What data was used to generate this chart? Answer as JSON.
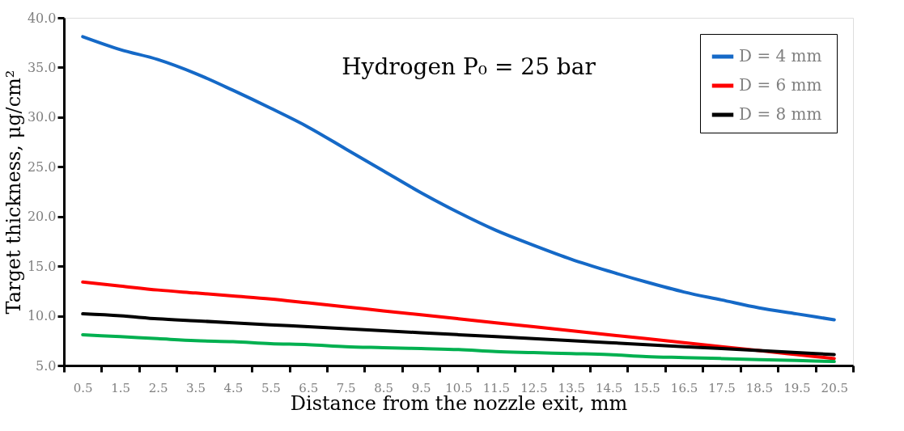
{
  "chart_data": {
    "type": "line",
    "title": "Hydrogen P₀ = 25 bar",
    "xlabel": "Distance from the nozzle exit,  mm",
    "ylabel": "Target thickness, μg/cm²",
    "categories": [
      "0.5",
      "1.5",
      "2.5",
      "3.5",
      "4.5",
      "5.5",
      "6.5",
      "7.5",
      "8.5",
      "9.5",
      "10.5",
      "11.5",
      "12.5",
      "13.5",
      "14.5",
      "15.5",
      "16.5",
      "17.5",
      "18.5",
      "19.5",
      "20.5"
    ],
    "series": [
      {
        "name": "D = 4 mm",
        "color": "#1569c7",
        "values": [
          38.1,
          36.8,
          35.8,
          34.4,
          32.7,
          30.9,
          29.0,
          26.8,
          24.6,
          22.4,
          20.4,
          18.6,
          17.1,
          15.7,
          14.5,
          13.4,
          12.4,
          11.6,
          10.8,
          10.2,
          9.6
        ]
      },
      {
        "name": "D = 6 mm",
        "color": "#ff0000",
        "values": [
          13.4,
          13.0,
          12.6,
          12.3,
          12.0,
          11.7,
          11.3,
          10.9,
          10.5,
          10.1,
          9.7,
          9.3,
          8.9,
          8.5,
          8.1,
          7.7,
          7.3,
          6.9,
          6.5,
          6.1,
          5.7
        ]
      },
      {
        "name": "D = 8  mm",
        "color": "#000000",
        "values": [
          10.2,
          10.0,
          9.7,
          9.5,
          9.3,
          9.1,
          8.9,
          8.7,
          8.5,
          8.3,
          8.1,
          7.9,
          7.7,
          7.5,
          7.3,
          7.1,
          6.9,
          6.7,
          6.5,
          6.3,
          6.1
        ]
      },
      {
        "color": "#00b050",
        "values": [
          8.1,
          7.9,
          7.7,
          7.5,
          7.4,
          7.2,
          7.1,
          6.9,
          6.8,
          6.7,
          6.6,
          6.4,
          6.3,
          6.2,
          6.1,
          5.9,
          5.8,
          5.7,
          5.6,
          5.5,
          5.4
        ]
      }
    ],
    "ylim": [
      5,
      40
    ],
    "yticks": [
      {
        "value": 5,
        "label": "5.0"
      },
      {
        "value": 10,
        "label": "10.0"
      },
      {
        "value": 15,
        "label": "15.0"
      },
      {
        "value": 20,
        "label": "20.0"
      },
      {
        "value": 25,
        "label": "25.0"
      },
      {
        "value": 30,
        "label": "30.0"
      },
      {
        "value": 35,
        "label": "35.0"
      },
      {
        "value": 40,
        "label": "40.0"
      }
    ],
    "grid": false,
    "legend": "top right",
    "marker": "none",
    "line_style": "solid"
  }
}
